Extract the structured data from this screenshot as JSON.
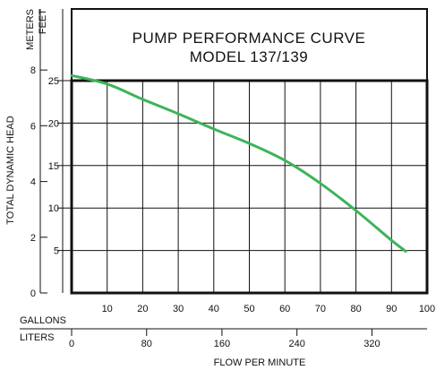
{
  "chart_data": {
    "type": "line",
    "title": "PUMP PERFORMANCE CURVE",
    "subtitle": "MODEL 137/139",
    "xlabel": "FLOW PER MINUTE",
    "ylabel": "TOTAL DYNAMIC HEAD",
    "x_unit_primary": "GALLONS",
    "x_unit_secondary": "LITERS",
    "y_unit_primary": "FEET",
    "y_unit_secondary": "METERS",
    "xlim": [
      0,
      100
    ],
    "ylim": [
      0,
      25
    ],
    "grid": true,
    "x_ticks": [
      10,
      20,
      30,
      40,
      50,
      60,
      70,
      80,
      90,
      100
    ],
    "x_secondary_ticks": [
      {
        "label": "0",
        "gallons": 0
      },
      {
        "label": "80",
        "gallons": 21.1
      },
      {
        "label": "160",
        "gallons": 42.3
      },
      {
        "label": "240",
        "gallons": 63.4
      },
      {
        "label": "320",
        "gallons": 84.5
      }
    ],
    "y_ticks": [
      5,
      10,
      15,
      20,
      25
    ],
    "y_secondary_ticks": [
      {
        "label": "0",
        "feet": 0
      },
      {
        "label": "2",
        "feet": 6.56
      },
      {
        "label": "4",
        "feet": 13.12
      },
      {
        "label": "6",
        "feet": 19.69
      },
      {
        "label": "8",
        "feet": 26.25
      }
    ],
    "series": [
      {
        "color": "#3cb45a",
        "x": [
          0,
          10,
          20,
          30,
          40,
          50,
          60,
          70,
          80,
          90,
          94
        ],
        "y": [
          25.6,
          24.6,
          22.8,
          21.1,
          19.3,
          17.6,
          15.6,
          12.9,
          9.7,
          6.2,
          4.9
        ]
      }
    ]
  }
}
